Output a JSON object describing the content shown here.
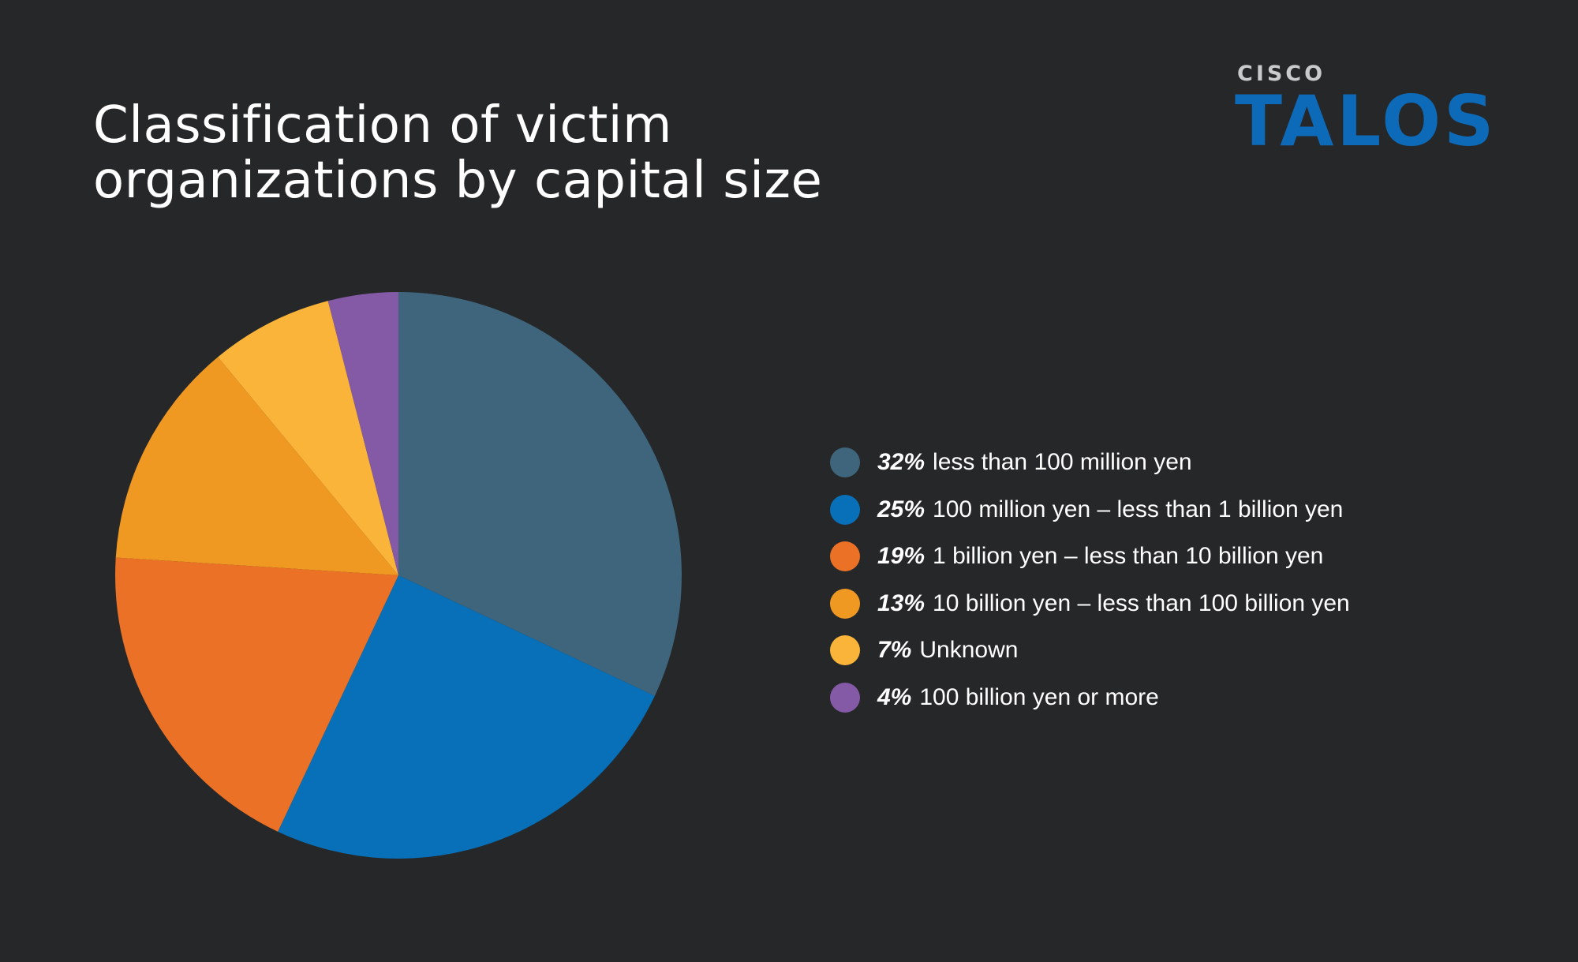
{
  "header": {
    "title_line1": "Classification of victim",
    "title_line2": "organizations by capital size"
  },
  "brand": {
    "sub": "CISCO",
    "name": "TALOS"
  },
  "chart_data": {
    "type": "pie",
    "title": "Classification of victim organizations by capital size",
    "legend_position": "right",
    "slices": [
      {
        "pct_label": "32%",
        "label": "less than 100 million yen",
        "value": 32,
        "color": "#3e657c"
      },
      {
        "pct_label": "25%",
        "label": "100 million yen – less than 1 billion yen",
        "value": 25,
        "color": "#0770b8"
      },
      {
        "pct_label": "19%",
        "label": "1 billion yen – less than 10 billion yen",
        "value": 19,
        "color": "#ea7125"
      },
      {
        "pct_label": "13%",
        "label": "10 billion yen – less than 100 billion yen",
        "value": 13,
        "color": "#ef9822"
      },
      {
        "pct_label": "7%",
        "label": "Unknown",
        "value": 7,
        "color": "#fbb43a"
      },
      {
        "pct_label": "4%",
        "label": "100 billion yen or more",
        "value": 4,
        "color": "#8459a5"
      }
    ]
  }
}
